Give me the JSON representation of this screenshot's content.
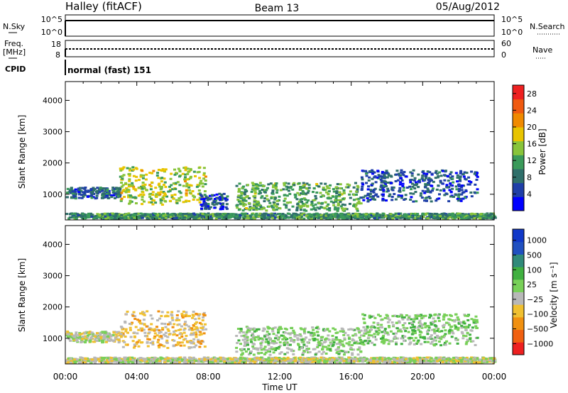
{
  "header": {
    "station": "Halley (fitACF)",
    "beam": "Beam 13",
    "date": "05/Aug/2012"
  },
  "strips": {
    "nsky": {
      "label": "N.Sky",
      "ticks": [
        "10^5",
        "10^0"
      ]
    },
    "nsearch": {
      "label": "N.Search",
      "ticks": [
        "10^5",
        "10^0"
      ]
    },
    "freq": {
      "label_line1": "Freq.",
      "label_line2": "[MHz]",
      "ticks": [
        "18",
        "8"
      ]
    },
    "nave": {
      "label": "Nave",
      "ticks": [
        "60",
        "0"
      ]
    },
    "cpid": {
      "label": "CPID",
      "value": "normal (fast) 151"
    }
  },
  "colors": {
    "power_scale": [
      "#0000ff",
      "#1f3fa8",
      "#2f6f6a",
      "#3a9a5a",
      "#88c43a",
      "#e8c400",
      "#f08a00",
      "#f05a10",
      "#ee2020"
    ],
    "velocity_scale": [
      "#1038c8",
      "#2050c0",
      "#308a7a",
      "#40b040",
      "#78d058",
      "#b8b8b8",
      "#f0c030",
      "#f09010",
      "#f06010",
      "#ee2020"
    ]
  },
  "chart_data": [
    {
      "type": "heatmap",
      "title": "",
      "xlabel": "Time UT",
      "ylabel": "Slant Range [km]",
      "xlim": [
        "00:00",
        "24:00"
      ],
      "ylim": [
        180,
        4600
      ],
      "x_ticks": [
        "00:00",
        "04:00",
        "08:00",
        "12:00",
        "16:00",
        "20:00",
        "00:00"
      ],
      "y_ticks": [
        "1000",
        "2000",
        "3000",
        "4000"
      ],
      "colorbar": {
        "label": "Power [dB]",
        "ticks": [
          "4",
          "8",
          "12",
          "16",
          "20",
          "24",
          "28"
        ],
        "range": [
          0,
          30
        ]
      },
      "echo_regions": [
        {
          "t_start": 0.0,
          "t_end": 3.0,
          "range_min": 900,
          "range_max": 1250,
          "level": 6
        },
        {
          "t_start": 3.0,
          "t_end": 7.8,
          "range_min": 700,
          "range_max": 1900,
          "level": 16
        },
        {
          "t_start": 7.5,
          "t_end": 9.0,
          "range_min": 550,
          "range_max": 1050,
          "level": 5
        },
        {
          "t_start": 9.5,
          "t_end": 16.5,
          "range_min": 500,
          "range_max": 1400,
          "level": 12
        },
        {
          "t_start": 16.5,
          "t_end": 23.0,
          "range_min": 800,
          "range_max": 1800,
          "level": 5
        },
        {
          "t_start": 0.0,
          "t_end": 24.0,
          "range_min": 250,
          "range_max": 420,
          "level": 10
        }
      ]
    },
    {
      "type": "heatmap",
      "title": "",
      "xlabel": "Time UT",
      "ylabel": "Slant Range [km]",
      "xlim": [
        "00:00",
        "24:00"
      ],
      "ylim": [
        180,
        4600
      ],
      "x_ticks": [
        "00:00",
        "04:00",
        "08:00",
        "12:00",
        "16:00",
        "20:00",
        "00:00"
      ],
      "y_ticks": [
        "1000",
        "2000",
        "3000",
        "4000"
      ],
      "colorbar": {
        "label": "Velocity [m s⁻¹]",
        "ticks": [
          "1000",
          "500",
          "100",
          "25",
          "−25",
          "−100",
          "−500",
          "−1000"
        ],
        "range": [
          -1000,
          1000
        ]
      },
      "echo_regions": [
        {
          "t_start": 0.0,
          "t_end": 3.0,
          "range_min": 900,
          "range_max": 1250,
          "velocity": -100
        },
        {
          "t_start": 3.0,
          "t_end": 7.8,
          "range_min": 700,
          "range_max": 1900,
          "velocity": -300
        },
        {
          "t_start": 9.5,
          "t_end": 16.5,
          "range_min": 500,
          "range_max": 1400,
          "velocity": 50
        },
        {
          "t_start": 16.5,
          "t_end": 23.0,
          "range_min": 800,
          "range_max": 1800,
          "velocity": 100
        },
        {
          "t_start": 0.0,
          "t_end": 24.0,
          "range_min": 250,
          "range_max": 420,
          "velocity": -100
        }
      ]
    }
  ]
}
